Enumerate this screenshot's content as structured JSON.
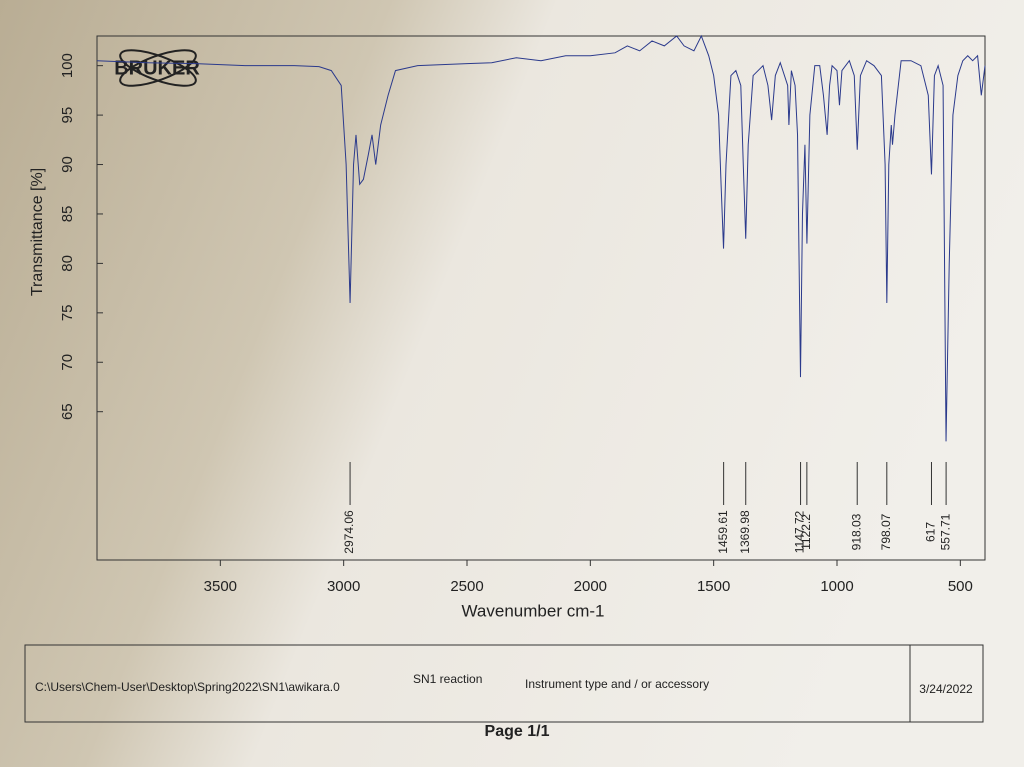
{
  "chart_data": {
    "type": "line",
    "logo": "BRUKER",
    "y_label": "Transmittance [%]",
    "x_label": "Wavenumber cm-1",
    "color": "#2b3a8c",
    "xlim": [
      4000,
      400
    ],
    "xticks": [
      3500,
      3000,
      2500,
      2000,
      1500,
      1000,
      500
    ],
    "ylim": [
      50,
      103
    ],
    "yticks": [
      65,
      70,
      75,
      80,
      85,
      90,
      95,
      100
    ],
    "x": [
      4000,
      3800,
      3600,
      3400,
      3200,
      3100,
      3050,
      3010,
      2990,
      2974,
      2960,
      2950,
      2935,
      2920,
      2900,
      2885,
      2870,
      2850,
      2820,
      2790,
      2700,
      2500,
      2400,
      2300,
      2200,
      2100,
      2000,
      1900,
      1850,
      1800,
      1750,
      1700,
      1650,
      1620,
      1580,
      1550,
      1520,
      1500,
      1480,
      1470,
      1460,
      1450,
      1430,
      1410,
      1390,
      1380,
      1370,
      1360,
      1340,
      1300,
      1280,
      1265,
      1250,
      1230,
      1200,
      1195,
      1185,
      1170,
      1160,
      1148,
      1140,
      1130,
      1122,
      1110,
      1090,
      1070,
      1055,
      1040,
      1030,
      1020,
      1000,
      990,
      980,
      950,
      930,
      918,
      905,
      880,
      850,
      820,
      805,
      798,
      790,
      780,
      775,
      765,
      740,
      700,
      660,
      640,
      630,
      617,
      605,
      590,
      570,
      558,
      545,
      530,
      510,
      490,
      470,
      450,
      430,
      415,
      400
    ],
    "values": [
      100.5,
      100.3,
      100.2,
      100,
      100,
      99.9,
      99.5,
      98,
      90,
      76,
      90,
      93,
      88,
      88.5,
      91,
      93,
      90,
      94,
      97,
      99.5,
      100,
      100.2,
      100.3,
      100.8,
      100.5,
      101,
      101,
      101.3,
      102,
      101.5,
      102.5,
      102,
      103,
      102,
      101.5,
      103,
      101,
      99,
      95,
      88,
      81.5,
      90,
      99,
      99.5,
      98,
      90,
      82.5,
      92,
      99,
      100,
      98,
      94.5,
      99,
      100.3,
      98,
      94,
      99.5,
      98,
      93,
      68.5,
      85,
      92,
      82,
      95,
      100,
      100,
      97,
      93,
      98,
      100,
      99.5,
      96,
      99.5,
      100.5,
      99,
      91.5,
      99,
      100.5,
      100,
      99,
      90,
      76,
      90,
      94,
      92,
      95,
      100.5,
      100.5,
      100,
      98,
      97,
      89,
      99,
      100,
      98,
      62,
      80,
      95,
      99,
      100.5,
      101,
      100.5,
      101,
      97,
      100
    ],
    "peak_labels": [
      2974.06,
      1459.61,
      1369.98,
      1147.72,
      1122.2,
      918.03,
      798.07,
      617.0,
      557.71
    ]
  },
  "footer": {
    "path": "C:\\Users\\Chem-User\\Desktop\\Spring2022\\SN1\\awikara.0",
    "sample": "SN1 reaction",
    "instrument": "Instrument type and / or accessory",
    "date": "3/24/2022",
    "page": "Page 1/1"
  }
}
